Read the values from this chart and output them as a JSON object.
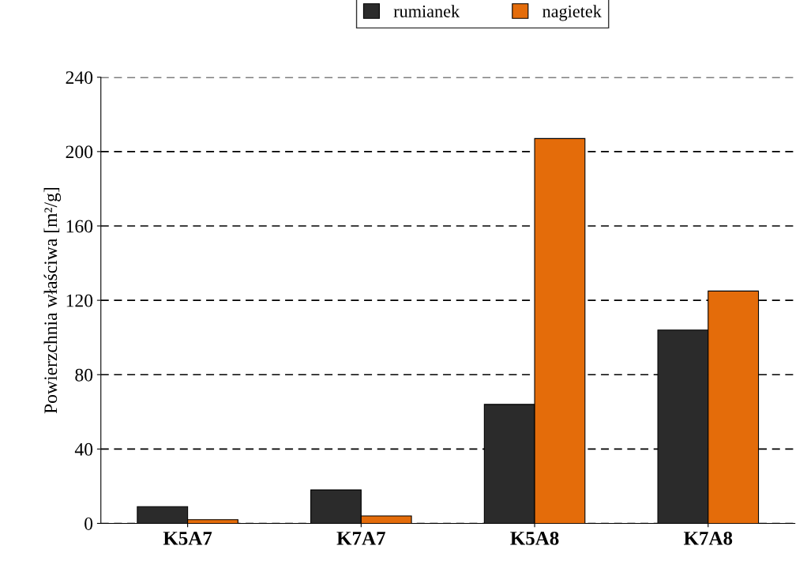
{
  "chart_data": {
    "type": "bar",
    "ylabel": "Powierzchnia właściwa [m²/g]",
    "categories": [
      "K5A7",
      "K7A7",
      "K5A8",
      "K7A8"
    ],
    "series": [
      {
        "name": "rumianek",
        "color": "#2b2b2b",
        "values": [
          9,
          18,
          64,
          104
        ]
      },
      {
        "name": "nagietek",
        "color": "#e46c0a",
        "values": [
          2,
          4,
          207,
          125
        ]
      }
    ],
    "ylim": [
      0,
      240
    ],
    "yticks": [
      0,
      40,
      80,
      120,
      160,
      200,
      240
    ],
    "grid": "y",
    "legend": "top"
  }
}
